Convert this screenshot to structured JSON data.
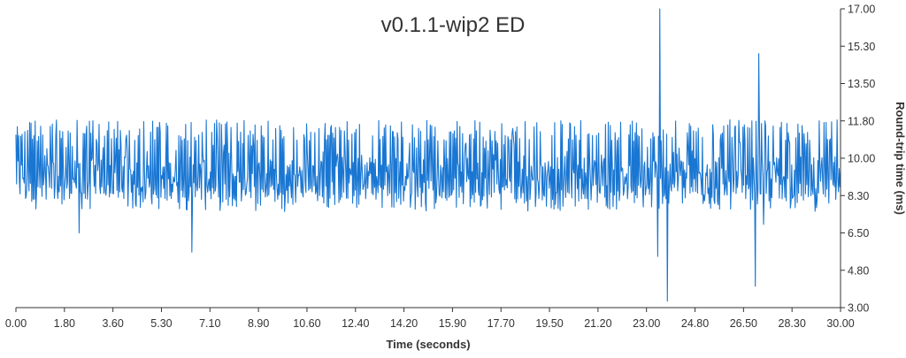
{
  "chart_data": {
    "type": "line",
    "title": "v0.1.1-wip2 ED",
    "xlabel": "Time (seconds)",
    "ylabel": "Round-trip time (ms)",
    "xlim": [
      0,
      30
    ],
    "ylim": [
      3,
      17
    ],
    "y_axis_position": "right",
    "grid": false,
    "legend": "none",
    "x_ticks": [
      "0.00",
      "1.80",
      "3.60",
      "5.30",
      "7.10",
      "8.90",
      "10.60",
      "12.40",
      "14.20",
      "15.90",
      "17.70",
      "19.50",
      "21.20",
      "23.00",
      "24.80",
      "26.50",
      "28.30",
      "30.00"
    ],
    "y_ticks": [
      "3.00",
      "4.80",
      "6.50",
      "8.30",
      "10.00",
      "11.80",
      "13.50",
      "15.30",
      "17.00"
    ],
    "colors": {
      "series": "#1976d2",
      "axis": "#333333"
    },
    "series": [
      {
        "x_step": 0.025,
        "x_start": 0,
        "y_min": 5.5,
        "y_max": 11.8,
        "y_mean": 9.1,
        "spikes": [
          {
            "x": 23.36,
            "y": 5.4
          },
          {
            "x": 23.42,
            "y": 17.0
          },
          {
            "x": 23.7,
            "y": 3.3
          },
          {
            "x": 26.9,
            "y": 4.0
          },
          {
            "x": 27.02,
            "y": 14.9
          },
          {
            "x": 27.2,
            "y": 6.9
          },
          {
            "x": 6.4,
            "y": 5.6
          },
          {
            "x": 2.3,
            "y": 6.5
          }
        ]
      }
    ]
  }
}
